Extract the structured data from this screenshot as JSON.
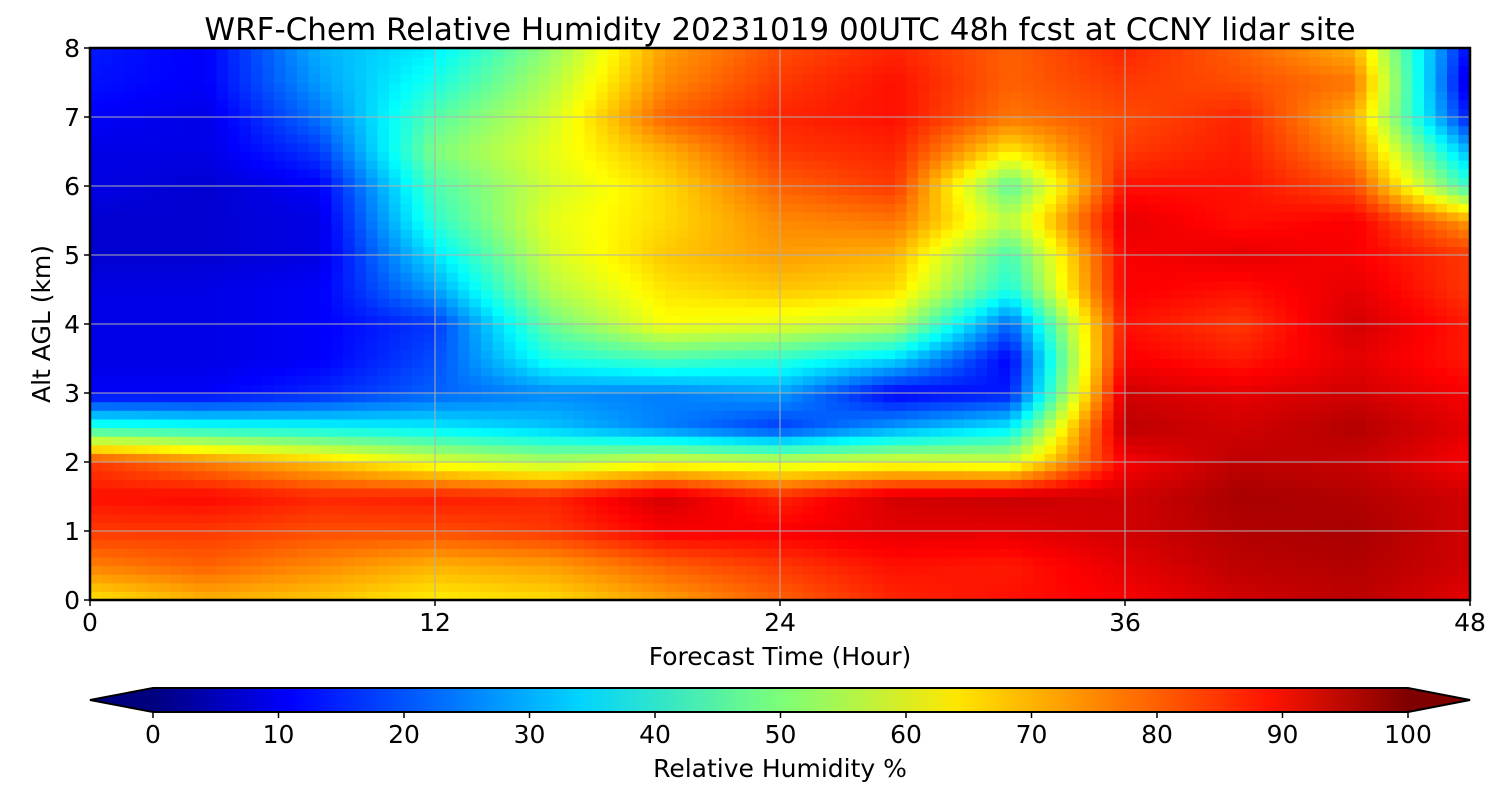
{
  "chart_data": {
    "type": "heatmap",
    "title": "WRF-Chem Relative Humidity 20231019 00UTC 48h fcst at CCNY lidar site",
    "xlabel": "Forecast Time (Hour)",
    "ylabel": "Alt AGL (km)",
    "xlim": [
      0,
      48
    ],
    "ylim": [
      0,
      8
    ],
    "x_ticks": [
      0,
      12,
      24,
      36,
      48
    ],
    "y_ticks": [
      0,
      1,
      2,
      3,
      4,
      5,
      6,
      7,
      8
    ],
    "grid": true,
    "colormap": "jet",
    "colorbar": {
      "label": "Relative Humidity %",
      "orientation": "horizontal",
      "range": [
        0,
        100
      ],
      "ticks": [
        0,
        10,
        20,
        30,
        40,
        50,
        60,
        70,
        80,
        90,
        100
      ],
      "extend": "both"
    },
    "x": [
      0,
      4,
      8,
      12,
      16,
      20,
      24,
      28,
      32,
      36,
      40,
      44,
      48
    ],
    "y": [
      0,
      0.5,
      1,
      1.5,
      2,
      2.5,
      3,
      3.5,
      4,
      4.5,
      5,
      5.5,
      6,
      6.5,
      7,
      7.5,
      8
    ],
    "z": [
      [
        65,
        70,
        68,
        64,
        66,
        72,
        78,
        84,
        86,
        88,
        92,
        94,
        90
      ],
      [
        75,
        78,
        74,
        70,
        72,
        78,
        82,
        86,
        85,
        90,
        94,
        95,
        92
      ],
      [
        82,
        82,
        80,
        80,
        82,
        88,
        88,
        90,
        90,
        92,
        95,
        96,
        92
      ],
      [
        86,
        87,
        84,
        85,
        84,
        92,
        84,
        92,
        93,
        92,
        96,
        95,
        92
      ],
      [
        82,
        75,
        68,
        60,
        55,
        60,
        58,
        60,
        58,
        88,
        94,
        93,
        88
      ],
      [
        42,
        40,
        38,
        36,
        32,
        25,
        18,
        28,
        36,
        94,
        92,
        95,
        90
      ],
      [
        12,
        12,
        16,
        22,
        26,
        25,
        28,
        12,
        15,
        92,
        90,
        92,
        88
      ],
      [
        10,
        10,
        12,
        20,
        40,
        45,
        42,
        34,
        12,
        88,
        85,
        90,
        85
      ],
      [
        10,
        10,
        12,
        18,
        48,
        62,
        60,
        56,
        22,
        86,
        82,
        92,
        85
      ],
      [
        10,
        10,
        12,
        28,
        55,
        65,
        68,
        66,
        40,
        88,
        86,
        90,
        82
      ],
      [
        8,
        8,
        10,
        35,
        58,
        68,
        72,
        70,
        44,
        88,
        90,
        88,
        82
      ],
      [
        8,
        8,
        10,
        42,
        60,
        66,
        74,
        76,
        56,
        90,
        86,
        88,
        72
      ],
      [
        10,
        8,
        12,
        45,
        58,
        66,
        78,
        82,
        46,
        86,
        86,
        80,
        42
      ],
      [
        10,
        10,
        18,
        50,
        60,
        70,
        82,
        84,
        64,
        82,
        85,
        74,
        30
      ],
      [
        12,
        10,
        24,
        46,
        58,
        78,
        84,
        86,
        76,
        80,
        84,
        70,
        14
      ],
      [
        14,
        12,
        28,
        40,
        55,
        74,
        82,
        86,
        78,
        82,
        80,
        76,
        8
      ],
      [
        15,
        12,
        30,
        36,
        52,
        72,
        80,
        84,
        78,
        84,
        78,
        70,
        12
      ]
    ]
  }
}
